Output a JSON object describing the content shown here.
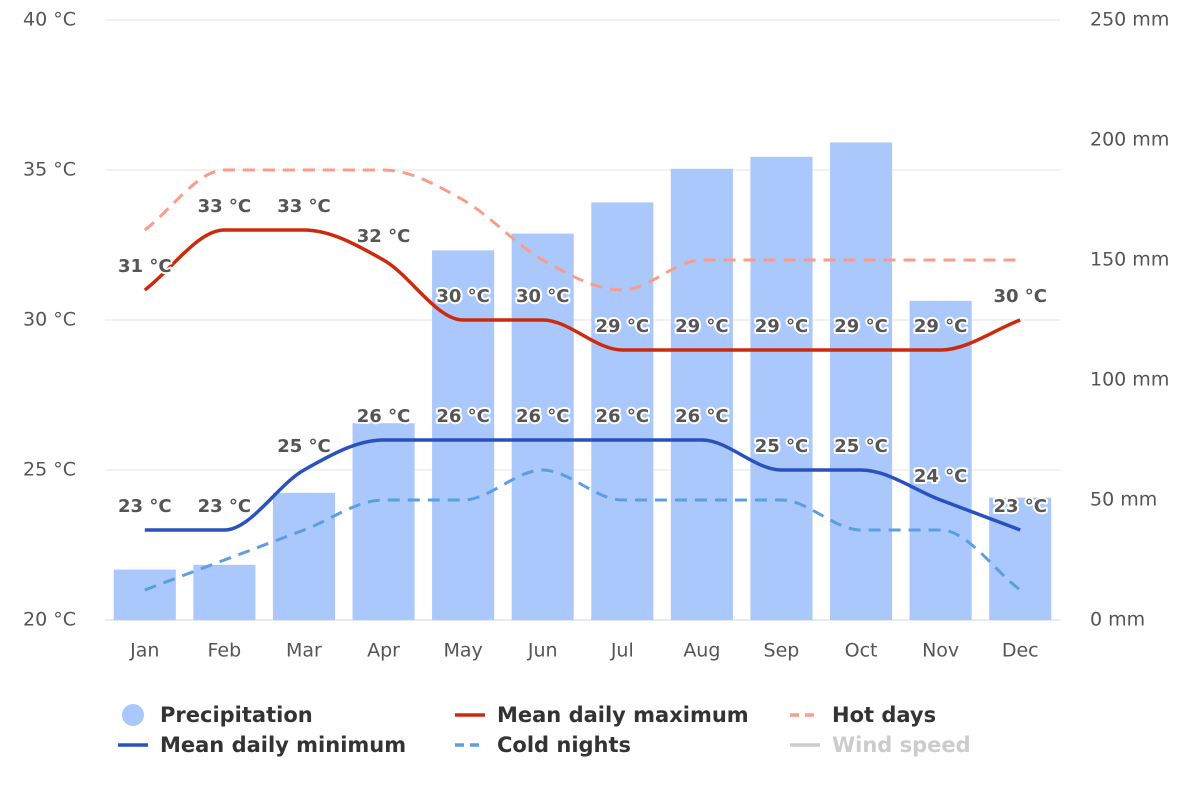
{
  "chart_data": {
    "type": "combo",
    "categories": [
      "Jan",
      "Feb",
      "Mar",
      "Apr",
      "May",
      "Jun",
      "Jul",
      "Aug",
      "Sep",
      "Oct",
      "Nov",
      "Dec"
    ],
    "ylim": [
      20,
      40
    ],
    "yticks": [
      {
        "value": 20,
        "label": "20 °C"
      },
      {
        "value": 25,
        "label": "25 °C"
      },
      {
        "value": 30,
        "label": "30 °C"
      },
      {
        "value": 35,
        "label": "35 °C"
      },
      {
        "value": 40,
        "label": "40 °C"
      }
    ],
    "y2lim": [
      0,
      250
    ],
    "y2ticks": [
      {
        "value": 0,
        "label": "0 mm"
      },
      {
        "value": 50,
        "label": "50 mm"
      },
      {
        "value": 100,
        "label": "100 mm"
      },
      {
        "value": 150,
        "label": "150 mm"
      },
      {
        "value": 200,
        "label": "200 mm"
      },
      {
        "value": 250,
        "label": "250 mm"
      }
    ],
    "grid": true,
    "series": [
      {
        "name": "Precipitation",
        "type": "bar",
        "axis": "y2",
        "color": "#aac8fb",
        "values": [
          21,
          23,
          53,
          82,
          154,
          161,
          174,
          188,
          193,
          199,
          133,
          51
        ]
      },
      {
        "name": "Mean daily maximum",
        "type": "line",
        "color": "#cc2a0c",
        "label_color": "#a82c0a",
        "values": [
          31,
          33,
          33,
          32,
          30,
          30,
          29,
          29,
          29,
          29,
          29,
          30
        ],
        "value_labels": [
          "31 °C",
          "33 °C",
          "33 °C",
          "32 °C",
          "30 °C",
          "30 °C",
          "29 °C",
          "29 °C",
          "29 °C",
          "29 °C",
          "29 °C",
          "30 °C"
        ]
      },
      {
        "name": "Hot days",
        "type": "line",
        "dashed": true,
        "color": "#f99d8a",
        "values": [
          33,
          35,
          35,
          35,
          34,
          32,
          31,
          32,
          32,
          32,
          32,
          32
        ]
      },
      {
        "name": "Mean daily minimum",
        "type": "line",
        "color": "#2a52be",
        "label_color": "#2b4fb0",
        "values": [
          23,
          23,
          25,
          26,
          26,
          26,
          26,
          26,
          25,
          25,
          24,
          23
        ],
        "value_labels": [
          "23 °C",
          "23 °C",
          "25 °C",
          "26 °C",
          "26 °C",
          "26 °C",
          "26 °C",
          "26 °C",
          "25 °C",
          "25 °C",
          "24 °C",
          "23 °C"
        ]
      },
      {
        "name": "Cold nights",
        "type": "line",
        "dashed": true,
        "color": "#5c9ee0",
        "values": [
          21,
          22,
          23,
          24,
          24,
          25,
          24,
          24,
          24,
          23,
          23,
          21
        ]
      },
      {
        "name": "Wind speed",
        "type": "line",
        "hidden": true,
        "color": "#cccccc"
      }
    ]
  }
}
